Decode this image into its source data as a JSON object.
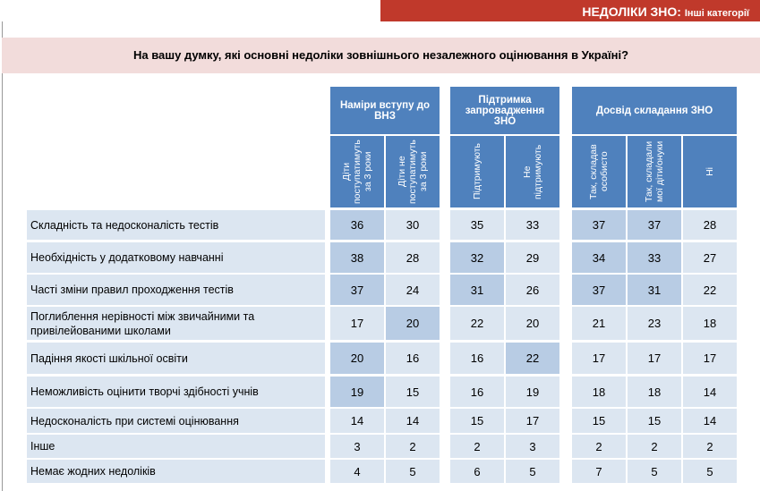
{
  "header": {
    "title": "НЕДОЛІКИ ЗНО:",
    "subtitle": "Інші категорії"
  },
  "question": "На вашу думку, які основні недоліки зовнішнього незалежного оцінювання в Україні?",
  "table": {
    "groups": [
      {
        "label": "Наміри вступу до ВНЗ",
        "columns": [
          "Діти поступатимуть за 3 роки",
          "Діти не поступатимуть за 3 роки"
        ]
      },
      {
        "label": "Підтримка запровадження ЗНО",
        "columns": [
          "Підтримують",
          "Не підтримують"
        ]
      },
      {
        "label": "Досвід складання ЗНО",
        "columns": [
          "Так, складав особисто",
          "Так, складали мої діти/онуки",
          "Ні"
        ]
      }
    ],
    "rows": [
      [
        "Складність та недосконалість тестів",
        36,
        30,
        35,
        33,
        37,
        37,
        28
      ],
      [
        "Необхідність у додатковому навчанні",
        38,
        28,
        32,
        29,
        34,
        33,
        27
      ],
      [
        "Часті зміни правил проходження тестів",
        37,
        24,
        31,
        26,
        37,
        31,
        22
      ],
      [
        "Поглиблення нерівності між звичайними та привілейованими школами",
        17,
        20,
        22,
        20,
        21,
        23,
        18
      ],
      [
        "Падіння якості шкільної освіти",
        20,
        16,
        16,
        22,
        17,
        17,
        17
      ],
      [
        "Неможливість оцінити творчі здібності учнів",
        19,
        15,
        16,
        19,
        18,
        18,
        14
      ],
      [
        "Недосконалість при системі оцінювання",
        14,
        14,
        15,
        17,
        15,
        15,
        14
      ],
      [
        "Інше",
        3,
        2,
        2,
        3,
        2,
        2,
        2
      ],
      [
        "Немає жодних недоліків",
        4,
        5,
        6,
        5,
        7,
        5,
        5
      ]
    ]
  }
}
